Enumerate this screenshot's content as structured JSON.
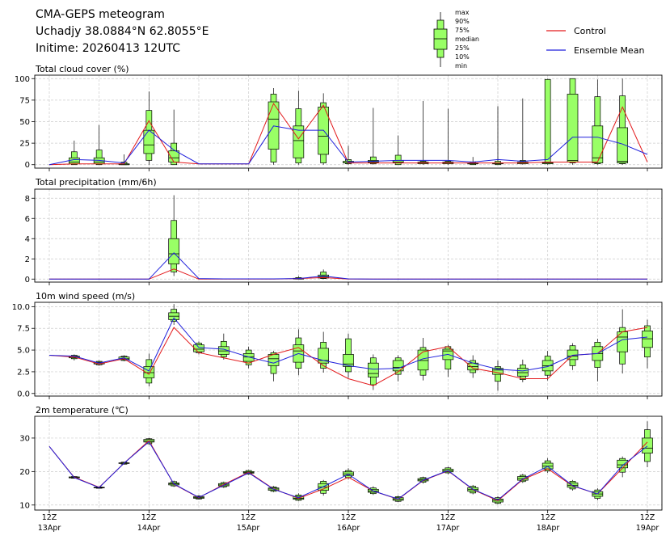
{
  "header": {
    "line1": "CMA-GEPS meteogram",
    "line2": "Uchadjy 38.0884°N 62.8055°E",
    "line3": "Initime: 20260413 12UTC"
  },
  "boxplot_legend": [
    "max",
    "90%",
    "75%",
    "median",
    "25%",
    "10%",
    "min"
  ],
  "legend": [
    {
      "name": "Control",
      "color": "#e31a1c"
    },
    {
      "name": "Ensemble Mean",
      "color": "#1f1fdc"
    }
  ],
  "colors": {
    "box_fill": "#99ff66",
    "grid": "#cccccc"
  },
  "x_ticks": [
    {
      "l1": "12Z",
      "l2": "13Apr"
    },
    {
      "l1": "12Z",
      "l2": "14Apr"
    },
    {
      "l1": "12Z",
      "l2": "15Apr"
    },
    {
      "l1": "12Z",
      "l2": "16Apr"
    },
    {
      "l1": "12Z",
      "l2": "17Apr"
    },
    {
      "l1": "12Z",
      "l2": "18Apr"
    },
    {
      "l1": "12Z",
      "l2": "19Apr"
    }
  ],
  "chart_data": [
    {
      "type": "boxplot",
      "title": "Total cloud cover (%)",
      "x_hours": [
        0,
        6,
        12,
        18,
        24,
        30,
        36,
        42,
        48,
        54,
        60,
        66,
        72,
        78,
        84,
        90,
        96,
        102,
        108,
        114,
        120,
        126,
        132,
        138,
        144
      ],
      "ylim": [
        -4,
        104
      ],
      "yticks": [
        0,
        25,
        50,
        75,
        100
      ],
      "control": [
        0,
        1,
        1,
        1,
        51,
        3,
        1,
        1,
        1,
        71,
        30,
        69,
        2,
        2,
        2,
        2,
        2,
        2,
        2,
        2,
        3,
        3,
        3,
        67,
        3
      ],
      "mean": [
        0,
        6,
        5,
        2,
        40,
        17,
        1,
        1,
        1,
        45,
        40,
        40,
        3,
        4,
        5,
        5,
        5,
        3,
        6,
        4,
        6,
        32,
        32,
        24,
        12
      ],
      "boxes": [
        null,
        [
          0,
          0,
          1,
          3,
          8,
          15,
          28
        ],
        [
          0,
          0,
          1,
          3,
          8,
          17,
          46
        ],
        [
          0,
          0,
          0,
          0,
          1,
          3,
          12
        ],
        [
          0,
          5,
          13,
          23,
          40,
          63,
          85
        ],
        [
          0,
          0,
          3,
          8,
          16,
          25,
          64
        ],
        null,
        null,
        null,
        [
          0,
          3,
          18,
          53,
          73,
          82,
          89
        ],
        [
          0,
          2,
          8,
          28,
          45,
          65,
          86
        ],
        [
          0,
          2,
          12,
          33,
          67,
          72,
          83
        ],
        [
          0,
          1,
          2,
          2,
          4,
          6,
          22
        ],
        [
          0,
          1,
          2,
          3,
          5,
          9,
          66
        ],
        [
          0,
          0,
          2,
          3,
          5,
          11,
          34
        ],
        [
          0,
          1,
          1,
          2,
          3,
          4,
          74
        ],
        [
          0,
          1,
          1,
          2,
          3,
          4,
          65
        ],
        [
          0,
          0,
          1,
          1,
          2,
          3,
          9
        ],
        [
          0,
          0,
          1,
          1,
          2,
          4,
          68
        ],
        [
          0,
          1,
          1,
          2,
          3,
          5,
          77
        ],
        [
          0,
          1,
          1,
          2,
          3,
          99,
          100
        ],
        [
          0,
          2,
          3,
          5,
          82,
          100,
          100
        ],
        [
          0,
          1,
          2,
          8,
          45,
          79,
          99
        ],
        [
          0,
          1,
          2,
          4,
          43,
          80,
          100
        ]
      ],
      "box_offsets": [
        0,
        0,
        0,
        0,
        0,
        0,
        0,
        0,
        0,
        0,
        0,
        0,
        0,
        0,
        0,
        0,
        0,
        0,
        0,
        0,
        0,
        0,
        0,
        0,
        0
      ]
    },
    {
      "type": "boxplot",
      "title": "Total precipitation (mm/6h)",
      "x_hours": [
        0,
        6,
        12,
        18,
        24,
        30,
        36,
        42,
        48,
        54,
        60,
        66,
        72,
        78,
        84,
        90,
        96,
        102,
        108,
        114,
        120,
        126,
        132,
        138,
        144
      ],
      "ylim": [
        -0.3,
        8.9
      ],
      "yticks": [
        0,
        2,
        4,
        6,
        8
      ],
      "control": [
        0,
        0,
        0,
        0,
        0,
        1.0,
        0,
        0,
        0,
        0,
        0.05,
        0.15,
        0,
        0,
        0,
        0,
        0,
        0,
        0,
        0,
        0,
        0,
        0,
        0,
        0
      ],
      "mean": [
        0,
        0,
        0,
        0,
        0,
        2.6,
        0.05,
        0.02,
        0.02,
        0.02,
        0.05,
        0.3,
        0.02,
        0,
        0,
        0,
        0,
        0,
        0,
        0,
        0,
        0,
        0,
        0,
        0
      ],
      "boxes": [
        null,
        null,
        null,
        null,
        null,
        [
          0.3,
          0.7,
          1.5,
          2.5,
          4.0,
          5.8,
          8.3
        ],
        null,
        null,
        null,
        null,
        [
          0,
          0,
          0,
          0.02,
          0.08,
          0.15,
          0.3
        ],
        [
          0,
          0.05,
          0.1,
          0.2,
          0.4,
          0.7,
          0.95
        ],
        null,
        null,
        null,
        null,
        null,
        null,
        null,
        null,
        null,
        null,
        null,
        null,
        null
      ]
    },
    {
      "type": "boxplot",
      "title": "10m wind speed (m/s)",
      "x_hours": [
        0,
        6,
        12,
        18,
        24,
        30,
        36,
        42,
        48,
        54,
        60,
        66,
        72,
        78,
        84,
        90,
        96,
        102,
        108,
        114,
        120,
        126,
        132,
        138,
        144
      ],
      "ylim": [
        -0.3,
        10.5
      ],
      "yticks": [
        0.0,
        2.5,
        5.0,
        7.5,
        10.0
      ],
      "control": [
        4.4,
        4.2,
        3.4,
        4.0,
        2.2,
        7.6,
        4.7,
        4.1,
        3.5,
        4.5,
        5.3,
        3.2,
        1.7,
        0.9,
        2.5,
        4.8,
        5.4,
        2.9,
        2.4,
        1.7,
        1.7,
        4.4,
        4.6,
        7.1,
        7.6
      ],
      "mean": [
        4.4,
        4.3,
        3.5,
        4.1,
        2.6,
        8.7,
        5.3,
        5.1,
        4.2,
        3.5,
        4.6,
        3.8,
        3.2,
        2.8,
        2.9,
        4.0,
        4.5,
        3.5,
        2.8,
        2.6,
        3.1,
        4.4,
        4.6,
        6.2,
        6.5
      ],
      "boxes": [
        null,
        [
          3.8,
          4.0,
          4.1,
          4.2,
          4.3,
          4.4,
          4.5
        ],
        [
          3.2,
          3.3,
          3.4,
          3.5,
          3.6,
          3.7,
          3.8
        ],
        [
          3.7,
          3.8,
          3.9,
          4.0,
          4.2,
          4.3,
          4.4
        ],
        [
          0.8,
          1.2,
          1.8,
          2.4,
          3.1,
          3.9,
          4.6
        ],
        [
          7.9,
          8.3,
          8.5,
          8.9,
          9.3,
          9.7,
          10.3
        ],
        [
          4.5,
          4.7,
          4.8,
          5.1,
          5.6,
          5.8,
          6.0
        ],
        [
          3.9,
          4.2,
          4.5,
          4.9,
          5.4,
          6.0,
          6.9
        ],
        [
          2.9,
          3.3,
          3.7,
          4.2,
          4.6,
          5.0,
          5.4
        ],
        [
          1.4,
          2.3,
          3.2,
          4.0,
          4.5,
          4.7,
          4.9
        ],
        [
          2.1,
          2.9,
          3.6,
          4.9,
          5.6,
          6.4,
          7.4
        ],
        [
          2.4,
          2.9,
          3.5,
          3.8,
          5.2,
          5.9,
          7.1
        ],
        [
          1.8,
          2.5,
          3.1,
          3.4,
          4.5,
          6.3,
          6.9
        ],
        [
          0.4,
          1.0,
          1.9,
          2.3,
          3.5,
          4.1,
          4.5
        ],
        [
          1.4,
          2.2,
          2.6,
          3.0,
          3.8,
          4.1,
          4.4
        ],
        [
          1.5,
          2.1,
          2.7,
          3.8,
          5.0,
          5.3,
          6.4
        ],
        [
          1.9,
          2.8,
          3.9,
          4.9,
          5.1,
          5.4,
          5.6
        ],
        [
          1.8,
          2.4,
          2.7,
          3.1,
          3.5,
          3.8,
          4.4
        ],
        [
          0.3,
          1.4,
          2.2,
          2.7,
          2.9,
          3.1,
          3.8
        ],
        [
          1.3,
          1.6,
          2.0,
          2.4,
          2.9,
          3.3,
          3.9
        ],
        [
          1.5,
          2.1,
          2.6,
          3.2,
          3.8,
          4.3,
          4.9
        ],
        [
          2.7,
          3.2,
          3.9,
          4.3,
          5.0,
          5.5,
          5.8
        ],
        [
          1.4,
          3.0,
          3.8,
          4.6,
          5.4,
          5.9,
          6.3
        ],
        [
          2.3,
          3.4,
          4.8,
          6.5,
          7.1,
          7.6,
          9.7
        ],
        [
          2.9,
          4.2,
          5.3,
          6.3,
          7.2,
          7.8,
          8.5
        ]
      ]
    },
    {
      "type": "boxplot",
      "title": "2m temperature (℃)",
      "x_hours": [
        0,
        6,
        12,
        18,
        24,
        30,
        36,
        42,
        48,
        54,
        60,
        66,
        72,
        78,
        84,
        90,
        96,
        102,
        108,
        114,
        120,
        126,
        132,
        138,
        144
      ],
      "ylim": [
        8.5,
        36.5
      ],
      "yticks": [
        10,
        20,
        30
      ],
      "control": [
        27.5,
        18.3,
        15.3,
        22.5,
        29.2,
        16.2,
        12.2,
        16.1,
        19.8,
        14.8,
        12.0,
        14.8,
        18.3,
        14.2,
        11.7,
        17.3,
        20.2,
        14.6,
        11.3,
        17.6,
        20.8,
        15.7,
        13.3,
        21.0,
        28.8
      ],
      "mean": [
        27.5,
        18.2,
        15.2,
        22.5,
        28.9,
        16.3,
        12.3,
        15.9,
        19.6,
        14.7,
        12.2,
        15.5,
        19.2,
        14.2,
        11.8,
        17.4,
        20.3,
        14.7,
        11.5,
        17.8,
        21.5,
        15.8,
        13.3,
        21.8,
        27.6
      ],
      "boxes": [
        null,
        [
          17.9,
          18.0,
          18.1,
          18.3,
          18.4,
          18.5,
          18.6
        ],
        [
          14.9,
          15.0,
          15.1,
          15.2,
          15.3,
          15.4,
          15.5
        ],
        [
          22.1,
          22.2,
          22.4,
          22.5,
          22.6,
          22.8,
          22.9
        ],
        [
          28.0,
          28.3,
          28.8,
          29.1,
          29.6,
          29.8,
          30.0
        ],
        [
          15.4,
          15.7,
          16.0,
          16.3,
          16.6,
          17.0,
          17.3
        ],
        [
          11.7,
          11.8,
          12.0,
          12.2,
          12.5,
          12.7,
          12.9
        ],
        [
          15.1,
          15.4,
          15.7,
          16.0,
          16.4,
          16.7,
          17.0
        ],
        [
          19.0,
          19.2,
          19.5,
          19.7,
          20.0,
          20.3,
          20.5
        ],
        [
          13.8,
          14.1,
          14.4,
          14.8,
          15.1,
          15.4,
          15.7
        ],
        [
          11.2,
          11.4,
          11.7,
          12.0,
          12.6,
          13.0,
          13.5
        ],
        [
          12.8,
          13.5,
          14.4,
          15.4,
          16.4,
          17.1,
          17.5
        ],
        [
          17.6,
          18.2,
          18.8,
          19.3,
          19.9,
          20.3,
          21.0
        ],
        [
          13.0,
          13.4,
          13.8,
          14.2,
          14.7,
          15.1,
          15.6
        ],
        [
          10.9,
          11.1,
          11.4,
          11.8,
          12.2,
          12.5,
          12.8
        ],
        [
          16.4,
          16.8,
          17.2,
          17.5,
          17.9,
          18.2,
          18.5
        ],
        [
          19.2,
          19.6,
          19.9,
          20.2,
          20.7,
          21.1,
          21.4
        ],
        [
          13.2,
          13.6,
          14.1,
          14.6,
          15.2,
          15.6,
          16.0
        ],
        [
          10.2,
          10.5,
          10.9,
          11.4,
          11.8,
          12.2,
          12.6
        ],
        [
          16.6,
          17.0,
          17.4,
          17.9,
          18.5,
          18.9,
          19.3
        ],
        [
          19.6,
          20.2,
          20.8,
          21.6,
          22.5,
          23.2,
          24.0
        ],
        [
          14.3,
          14.8,
          15.3,
          15.9,
          16.6,
          17.1,
          17.5
        ],
        [
          11.4,
          12.0,
          12.6,
          13.3,
          14.0,
          14.5,
          15.0
        ],
        [
          18.3,
          19.8,
          21.1,
          22.0,
          23.4,
          23.9,
          24.5
        ],
        [
          21.3,
          23.0,
          25.5,
          27.0,
          30.0,
          32.5,
          35.0
        ]
      ]
    }
  ]
}
